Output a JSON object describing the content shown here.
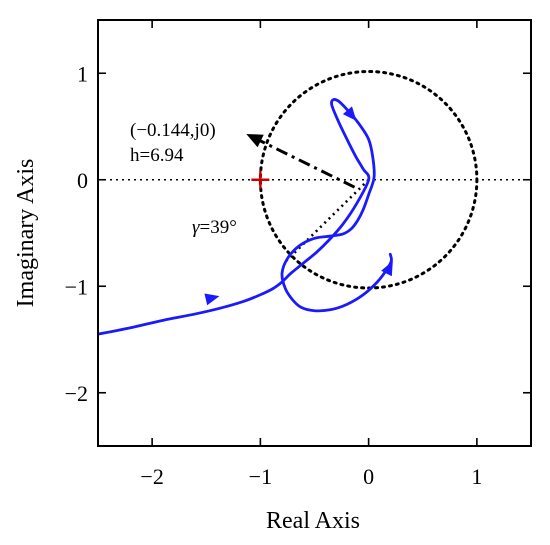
{
  "chart_data": {
    "type": "line",
    "xlabel": "Real Axis",
    "ylabel": "Imaginary Axis",
    "xlim": [
      -2.5,
      1.5
    ],
    "ylim": [
      -2.5,
      1.5
    ],
    "x_ticks": [
      -2,
      -1,
      0,
      1
    ],
    "y_ticks": [
      1,
      0,
      -1,
      -2
    ],
    "x_tick_labels": [
      "−2",
      "−1",
      "0",
      "1"
    ],
    "y_tick_labels": [
      "1",
      "0",
      "−1",
      "−2"
    ],
    "grid": false,
    "legend": "none",
    "colors": {
      "nyquist_curve": "#1a1aff",
      "critical_point": "#cc0000",
      "reference_lines": "#000000"
    },
    "series": [
      {
        "x": [
          -2.5,
          -2.2,
          -1.9,
          -1.6,
          -1.35,
          -1.15,
          -1.0,
          -0.88,
          -0.8,
          -0.72,
          -0.6,
          -0.48,
          -0.36,
          -0.24,
          -0.12,
          0.0,
          -0.05,
          -0.12,
          -0.2,
          -0.28,
          -0.34,
          -0.33,
          -0.28,
          -0.2,
          -0.1,
          0.0,
          0.04,
          0.05,
          0.0,
          -0.05,
          -0.1,
          -0.16,
          -0.24,
          -0.36,
          -0.5,
          -0.64,
          -0.75,
          -0.8,
          -0.77,
          -0.7,
          -0.62,
          -0.5,
          -0.35,
          -0.2,
          -0.05,
          0.08,
          0.17,
          0.21,
          0.2
        ],
        "y": [
          -1.45,
          -1.39,
          -1.32,
          -1.26,
          -1.2,
          -1.14,
          -1.08,
          -1.02,
          -0.96,
          -0.88,
          -0.78,
          -0.68,
          -0.56,
          -0.42,
          -0.24,
          0.0,
          0.1,
          0.22,
          0.38,
          0.55,
          0.7,
          0.75,
          0.74,
          0.66,
          0.54,
          0.38,
          0.2,
          0.02,
          -0.14,
          -0.28,
          -0.38,
          -0.46,
          -0.51,
          -0.53,
          -0.55,
          -0.62,
          -0.74,
          -0.88,
          -1.02,
          -1.13,
          -1.2,
          -1.23,
          -1.22,
          -1.17,
          -1.08,
          -0.96,
          -0.84,
          -0.76,
          -0.7
        ]
      }
    ],
    "direction_arrows": [
      {
        "x": -1.45,
        "y": -1.11
      },
      {
        "x": -0.16,
        "y": 0.61
      },
      {
        "x": 0.19,
        "y": -0.83
      }
    ],
    "unit_circle": {
      "center": [
        0,
        0
      ],
      "radius": 1
    },
    "real_axis_line_y": 0,
    "gamma_line": {
      "from": [
        0,
        0
      ],
      "to": [
        -0.77,
        -0.77
      ]
    },
    "critical_point": {
      "x": -1,
      "y": 0
    },
    "annotation_arrow": {
      "from": [
        -0.13,
        -0.07
      ],
      "to": [
        -1.13,
        0.43
      ]
    },
    "annotations": {
      "point_label": "(−0.144,j0)",
      "h_label": "h=6.94",
      "gamma_symbol": "γ",
      "gamma_value": "=39°"
    }
  }
}
